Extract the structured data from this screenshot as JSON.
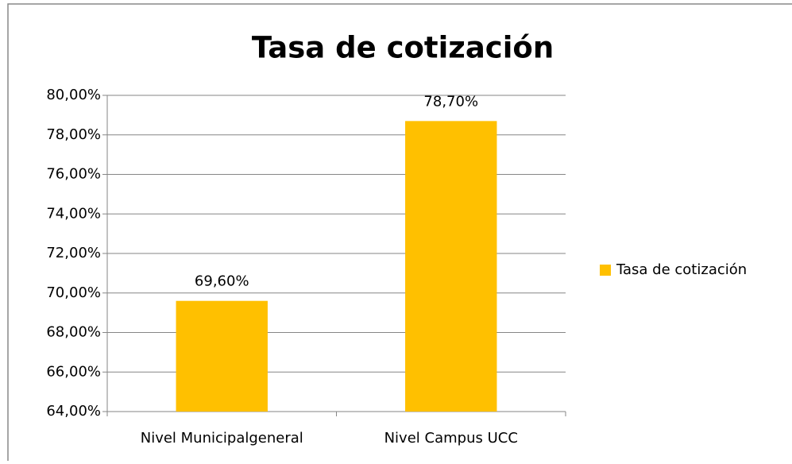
{
  "chart_data": {
    "type": "bar",
    "title": "Tasa de cotización",
    "categories": [
      "Nivel Municipalgeneral",
      "Nivel Campus UCC"
    ],
    "series": [
      {
        "name": "Tasa de cotización",
        "color": "#ffc000",
        "values": [
          69.6,
          78.7
        ],
        "value_labels": [
          "69,60%",
          "78,70%"
        ]
      }
    ],
    "ylim": [
      64,
      80
    ],
    "yticks": [
      {
        "value": 64,
        "label": "64,00%"
      },
      {
        "value": 66,
        "label": "66,00%"
      },
      {
        "value": 68,
        "label": "68,00%"
      },
      {
        "value": 70,
        "label": "70,00%"
      },
      {
        "value": 72,
        "label": "72,00%"
      },
      {
        "value": 74,
        "label": "74,00%"
      },
      {
        "value": 76,
        "label": "76,00%"
      },
      {
        "value": 78,
        "label": "78,00%"
      },
      {
        "value": 80,
        "label": "80,00%"
      }
    ],
    "grid": true,
    "legend": "right"
  }
}
